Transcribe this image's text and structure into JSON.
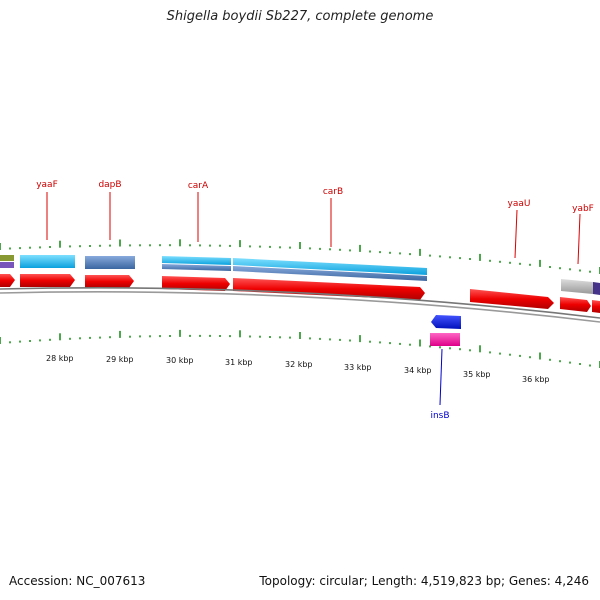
{
  "title": "Shigella boydii Sb227, complete genome",
  "footer": {
    "accession": "Accession: NC_007613",
    "summary": "Topology: circular; Length: 4,519,823 bp; Genes: 4,246"
  },
  "kbp_labels": [
    "28 kbp",
    "29 kbp",
    "30 kbp",
    "31 kbp",
    "32 kbp",
    "33 kbp",
    "34 kbp",
    "35 kbp",
    "36 kbp"
  ],
  "gene_labels": [
    {
      "name": "yaaF",
      "color": "#cc0000"
    },
    {
      "name": "dapB",
      "color": "#cc0000"
    },
    {
      "name": "carA",
      "color": "#cc0000"
    },
    {
      "name": "carB",
      "color": "#cc0000"
    },
    {
      "name": "yaaU",
      "color": "#cc0000"
    },
    {
      "name": "yabF",
      "color": "#cc0000"
    },
    {
      "name": "insB",
      "color": "#0000cc"
    }
  ],
  "colors": {
    "forward_cds": "#ee1111",
    "tick_green": "#118811",
    "cog_cyan": "#22bbee",
    "cog_steel": "#5588bb",
    "cog_gray": "#aaaaaa",
    "insertion_blue": "#1122dd",
    "insertion_pink": "#ee2299",
    "backbone": "#888888"
  }
}
